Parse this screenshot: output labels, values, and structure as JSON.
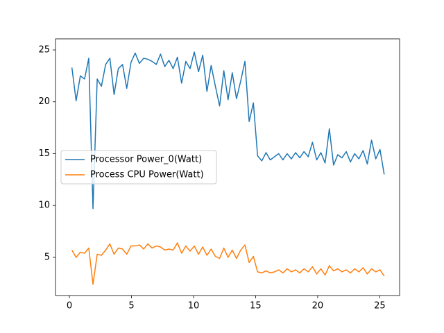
{
  "chart_data": {
    "type": "line",
    "x": [
      0.2,
      0.54,
      0.88,
      1.22,
      1.56,
      1.9,
      2.24,
      2.58,
      2.92,
      3.26,
      3.6,
      3.94,
      4.28,
      4.62,
      4.96,
      5.3,
      5.64,
      5.98,
      6.32,
      6.66,
      7.0,
      7.34,
      7.68,
      8.02,
      8.36,
      8.7,
      9.04,
      9.38,
      9.72,
      10.06,
      10.4,
      10.74,
      11.08,
      11.42,
      11.76,
      12.1,
      12.44,
      12.78,
      13.12,
      13.46,
      13.8,
      14.14,
      14.48,
      14.82,
      15.16,
      15.5,
      15.84,
      16.18,
      16.52,
      16.86,
      17.2,
      17.54,
      17.88,
      18.22,
      18.56,
      18.9,
      19.24,
      19.58,
      19.92,
      20.26,
      20.6,
      20.94,
      21.28,
      21.62,
      21.96,
      22.3,
      22.64,
      22.98,
      23.32,
      23.66,
      24.0,
      24.34,
      24.68,
      25.02,
      25.36
    ],
    "series": [
      {
        "name": "Processor Power_0(Watt)",
        "color": "#1f77b4",
        "values": [
          23.3,
          20.1,
          22.5,
          22.2,
          24.2,
          9.7,
          22.2,
          21.5,
          23.6,
          24.2,
          20.7,
          23.2,
          23.6,
          21.3,
          23.8,
          24.7,
          23.7,
          24.2,
          24.1,
          23.9,
          23.6,
          24.6,
          23.4,
          24.0,
          23.2,
          24.3,
          21.8,
          23.9,
          23.2,
          24.8,
          22.9,
          24.5,
          21.0,
          23.5,
          21.5,
          19.6,
          23.0,
          20.2,
          22.8,
          20.3,
          22.0,
          23.9,
          18.1,
          19.9,
          14.8,
          14.3,
          15.1,
          14.4,
          14.7,
          15.0,
          14.4,
          15.0,
          14.5,
          15.1,
          14.6,
          15.2,
          14.7,
          16.1,
          14.4,
          15.1,
          14.1,
          17.4,
          13.9,
          14.9,
          14.6,
          15.2,
          14.2,
          15.0,
          14.5,
          15.3,
          14.0,
          16.3,
          14.5,
          15.4,
          13.0
        ]
      },
      {
        "name": "Process CPU Power(Watt)",
        "color": "#ff7f0e",
        "values": [
          5.7,
          5.0,
          5.5,
          5.4,
          5.9,
          2.4,
          5.3,
          5.2,
          5.7,
          6.3,
          5.3,
          5.9,
          5.8,
          5.3,
          6.1,
          6.1,
          6.2,
          5.8,
          6.3,
          5.9,
          6.1,
          6.0,
          5.7,
          5.8,
          5.7,
          6.4,
          5.4,
          6.1,
          5.6,
          6.1,
          5.3,
          6.0,
          5.2,
          5.8,
          5.1,
          4.9,
          5.9,
          5.0,
          5.7,
          4.9,
          5.7,
          6.2,
          4.5,
          5.1,
          3.6,
          3.5,
          3.7,
          3.5,
          3.6,
          3.8,
          3.5,
          3.9,
          3.6,
          3.8,
          3.5,
          3.9,
          3.6,
          4.1,
          3.4,
          3.9,
          3.3,
          4.2,
          3.7,
          3.9,
          3.6,
          3.8,
          3.5,
          3.9,
          3.6,
          4.0,
          3.4,
          3.9,
          3.6,
          3.8,
          3.2
        ]
      }
    ],
    "xlim": [
      -1.12,
      26.6
    ],
    "ylim": [
      1.32,
      26.07
    ],
    "xticks": [
      0,
      5,
      10,
      15,
      20,
      25
    ],
    "yticks": [
      5,
      10,
      15,
      20,
      25
    ],
    "legend": "center left",
    "grid": false
  }
}
